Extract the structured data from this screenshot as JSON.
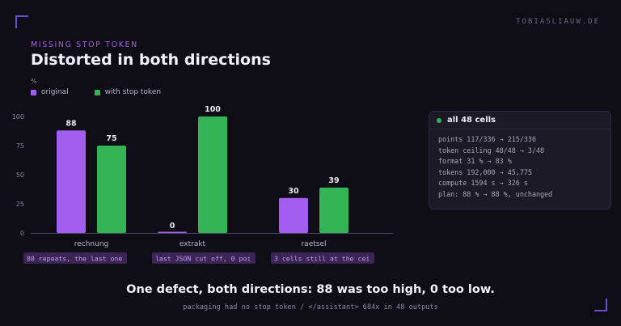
{
  "brand": "TOBIASLIAUW.DE",
  "eyebrow": "MISSING STOP TOKEN",
  "title": "Distorted in both directions",
  "unit_label": "%",
  "colors": {
    "accent": "#a45ee5",
    "original": "#a35ef0",
    "with_stop_token": "#34b555",
    "annotation_bg": "#3a2555",
    "annotation_text": "#c49af2"
  },
  "chart_data": {
    "type": "bar",
    "ylabel": "%",
    "ylim": [
      0,
      100
    ],
    "yticks": [
      0,
      25,
      50,
      75,
      100
    ],
    "categories": [
      "rechnung",
      "extrakt",
      "raetsel"
    ],
    "series": [
      {
        "name": "original",
        "values": [
          88,
          0,
          30
        ]
      },
      {
        "name": "with stop token",
        "values": [
          75,
          100,
          39
        ]
      }
    ],
    "annotations": [
      "80 repeats, the last one",
      "last JSON cut off, 0 poi",
      "3 cells still at the cei"
    ],
    "legend": "top-left",
    "grid": false
  },
  "panel": {
    "title": "all 48 cells",
    "lines": [
      "points 117/336 → 215/336",
      "token ceiling 48/48 → 3/48",
      "format 31 % → 83 %",
      "tokens 192,000 → 45,775",
      "compute 1594 s → 326 s",
      "plan: 88 % → 88 %, unchanged"
    ]
  },
  "conclusion": "One defect, both directions: 88 was too high, 0 too low.",
  "footnote": "packaging had no stop token / </assistant> 684x in 48 outputs"
}
